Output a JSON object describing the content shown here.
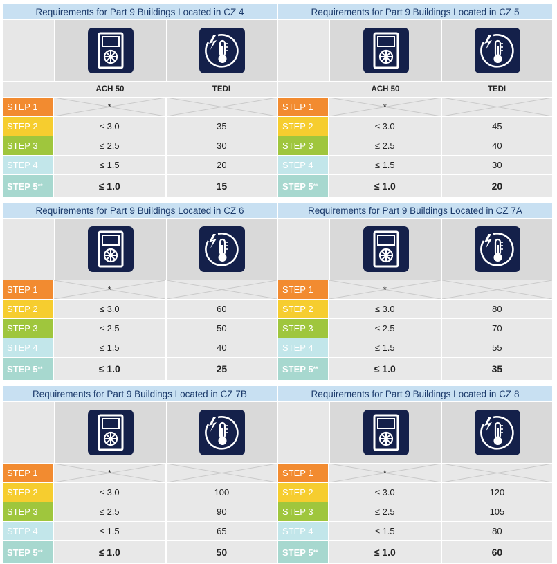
{
  "colors": {
    "step1": "#f28b30",
    "step2": "#f6cd2f",
    "step3": "#9fc63d",
    "step4": "#c2e6ea",
    "step5": "#a7d8cf",
    "icon_bg": "#14204a",
    "title_bg": "#c8e0f2",
    "title_text": "#1b3a6b"
  },
  "icons": {
    "ach": "air-exchange-unit-icon",
    "tedi": "thermal-energy-thermometer-icon"
  },
  "columns": [
    "ACH 50",
    "TEDI"
  ],
  "steps": [
    "STEP 1",
    "STEP 2",
    "STEP 3",
    "STEP 4",
    "STEP 5"
  ],
  "step5_suffix": "**",
  "ach_values": [
    "*",
    "≤ 3.0",
    "≤ 2.5",
    "≤ 1.5",
    "≤ 1.0"
  ],
  "panels": [
    {
      "title": "Requirements for Part 9 Buildings Located in CZ 4",
      "show_headers": true,
      "tedi": [
        "",
        "35",
        "30",
        "20",
        "15"
      ]
    },
    {
      "title": "Requirements for Part 9 Buildings Located in CZ 5",
      "show_headers": true,
      "tedi": [
        "",
        "45",
        "40",
        "30",
        "20"
      ]
    },
    {
      "title": "Requirements for Part 9 Buildings Located in CZ 6",
      "show_headers": false,
      "tedi": [
        "",
        "60",
        "50",
        "40",
        "25"
      ]
    },
    {
      "title": "Requirements for Part 9 Buildings Located in CZ 7A",
      "show_headers": false,
      "tedi": [
        "",
        "80",
        "70",
        "55",
        "35"
      ]
    },
    {
      "title": "Requirements for Part 9 Buildings Located in CZ 7B",
      "show_headers": false,
      "tedi": [
        "",
        "100",
        "90",
        "65",
        "50"
      ]
    },
    {
      "title": "Requirements for Part 9 Buildings Located in CZ 8",
      "show_headers": false,
      "tedi": [
        "",
        "120",
        "105",
        "80",
        "60"
      ]
    }
  ]
}
